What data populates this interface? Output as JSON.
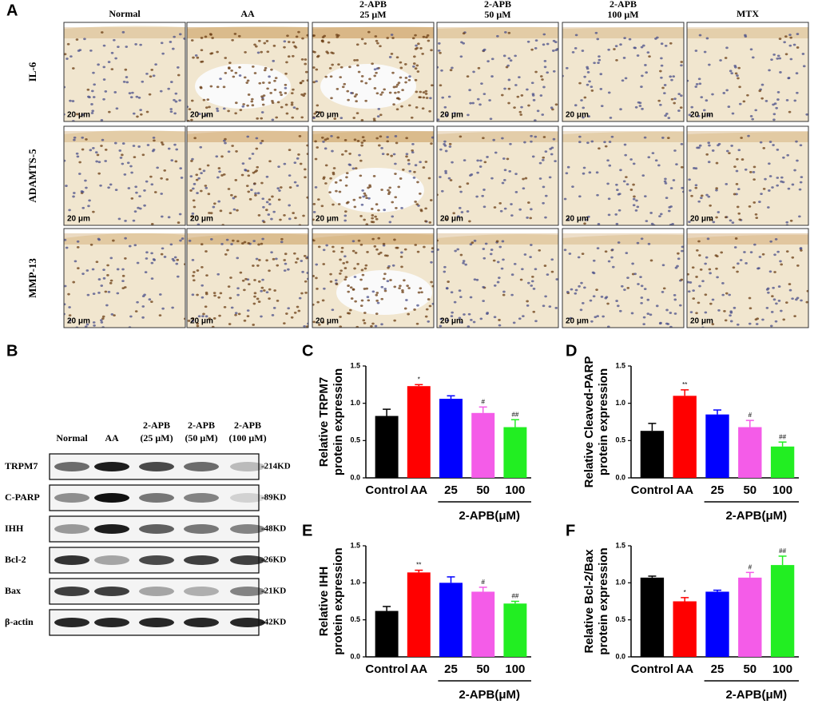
{
  "panel_a": {
    "label": "A",
    "columns": [
      [
        "Normal"
      ],
      [
        "AA"
      ],
      [
        "2-APB",
        "25 μM"
      ],
      [
        "2-APB",
        "50 μM"
      ],
      [
        "2-APB",
        "100 μM"
      ],
      [
        "MTX"
      ]
    ],
    "rows": [
      "IL-6",
      "ADAMTS-5",
      "MMP-13"
    ],
    "scale_bar": "20 μm"
  },
  "panel_b": {
    "label": "B",
    "lanes": [
      [
        "Normal"
      ],
      [
        "AA"
      ],
      [
        "2-APB",
        "(25 μM)"
      ],
      [
        "2-APB",
        "(50 μM)"
      ],
      [
        "2-APB",
        "(100 μM)"
      ]
    ],
    "proteins": [
      {
        "name": "TRPM7",
        "size": "-214KD"
      },
      {
        "name": "C-PARP",
        "size": "-89KD"
      },
      {
        "name": "IHH",
        "size": "-48KD"
      },
      {
        "name": "Bcl-2",
        "size": "-26KD"
      },
      {
        "name": "Bax",
        "size": "-21KD"
      },
      {
        "name": "β-actin",
        "size": "-42KD"
      }
    ]
  },
  "chart_data": [
    {
      "type": "bar",
      "panel_label": "C",
      "y_label": [
        "Relative TRPM7",
        "protein expression"
      ],
      "categories": [
        "Control",
        "AA",
        "25",
        "50",
        "100"
      ],
      "group_label": "2-APB(μM)",
      "values": [
        0.83,
        1.23,
        1.06,
        0.87,
        0.68
      ],
      "errors": [
        0.09,
        0.02,
        0.04,
        0.08,
        0.1
      ],
      "significance": [
        null,
        "*",
        null,
        "#",
        "##"
      ],
      "colors": [
        "#000000",
        "#ff0000",
        "#0000ff",
        "#f45ce8",
        "#22ee22"
      ],
      "ylim": [
        0,
        1.5
      ],
      "yticks": [
        {
          "value": 0,
          "label": "0.0"
        },
        0.5,
        {
          "value": 1,
          "label": "1.0"
        },
        1.5
      ]
    },
    {
      "type": "bar",
      "panel_label": "D",
      "y_label": [
        "Relative Cleaved-PARP",
        "protein expression"
      ],
      "categories": [
        "Control",
        "AA",
        "25",
        "50",
        "100"
      ],
      "group_label": "2-APB(μM)",
      "values": [
        0.63,
        1.1,
        0.85,
        0.68,
        0.42
      ],
      "errors": [
        0.1,
        0.08,
        0.06,
        0.09,
        0.06
      ],
      "significance": [
        null,
        "**",
        null,
        "#",
        "##"
      ],
      "colors": [
        "#000000",
        "#ff0000",
        "#0000ff",
        "#f45ce8",
        "#22ee22"
      ],
      "ylim": [
        0,
        1.5
      ],
      "yticks": [
        {
          "value": 0,
          "label": "0.0"
        },
        0.5,
        {
          "value": 1,
          "label": "1.0"
        },
        1.5
      ]
    },
    {
      "type": "bar",
      "panel_label": "E",
      "y_label": [
        "Relative IHH",
        "protein expression"
      ],
      "categories": [
        "Control",
        "AA",
        "25",
        "50",
        "100"
      ],
      "group_label": "2-APB(μM)",
      "values": [
        0.62,
        1.14,
        1.0,
        0.88,
        0.72
      ],
      "errors": [
        0.06,
        0.03,
        0.08,
        0.06,
        0.03
      ],
      "significance": [
        null,
        "**",
        null,
        "#",
        "##"
      ],
      "colors": [
        "#000000",
        "#ff0000",
        "#0000ff",
        "#f45ce8",
        "#22ee22"
      ],
      "ylim": [
        0,
        1.5
      ],
      "yticks": [
        {
          "value": 0,
          "label": "0.0"
        },
        0.5,
        {
          "value": 1,
          "label": "1.0"
        },
        1.5
      ]
    },
    {
      "type": "bar",
      "panel_label": "F",
      "y_label": [
        "Relative Bcl-2/Bax",
        "protein expression"
      ],
      "categories": [
        "Control",
        "AA",
        "25",
        "50",
        "100"
      ],
      "group_label": "2-APB(μM)",
      "values": [
        1.07,
        0.75,
        0.88,
        1.07,
        1.24
      ],
      "errors": [
        0.02,
        0.05,
        0.02,
        0.07,
        0.12
      ],
      "significance": [
        null,
        "*",
        null,
        "#",
        "##"
      ],
      "colors": [
        "#000000",
        "#ff0000",
        "#0000ff",
        "#f45ce8",
        "#22ee22"
      ],
      "ylim": [
        0,
        1.5
      ],
      "yticks": [
        {
          "value": 0,
          "label": "0.0"
        },
        0.5,
        {
          "value": 1,
          "label": "1.0"
        },
        1.5
      ]
    }
  ]
}
